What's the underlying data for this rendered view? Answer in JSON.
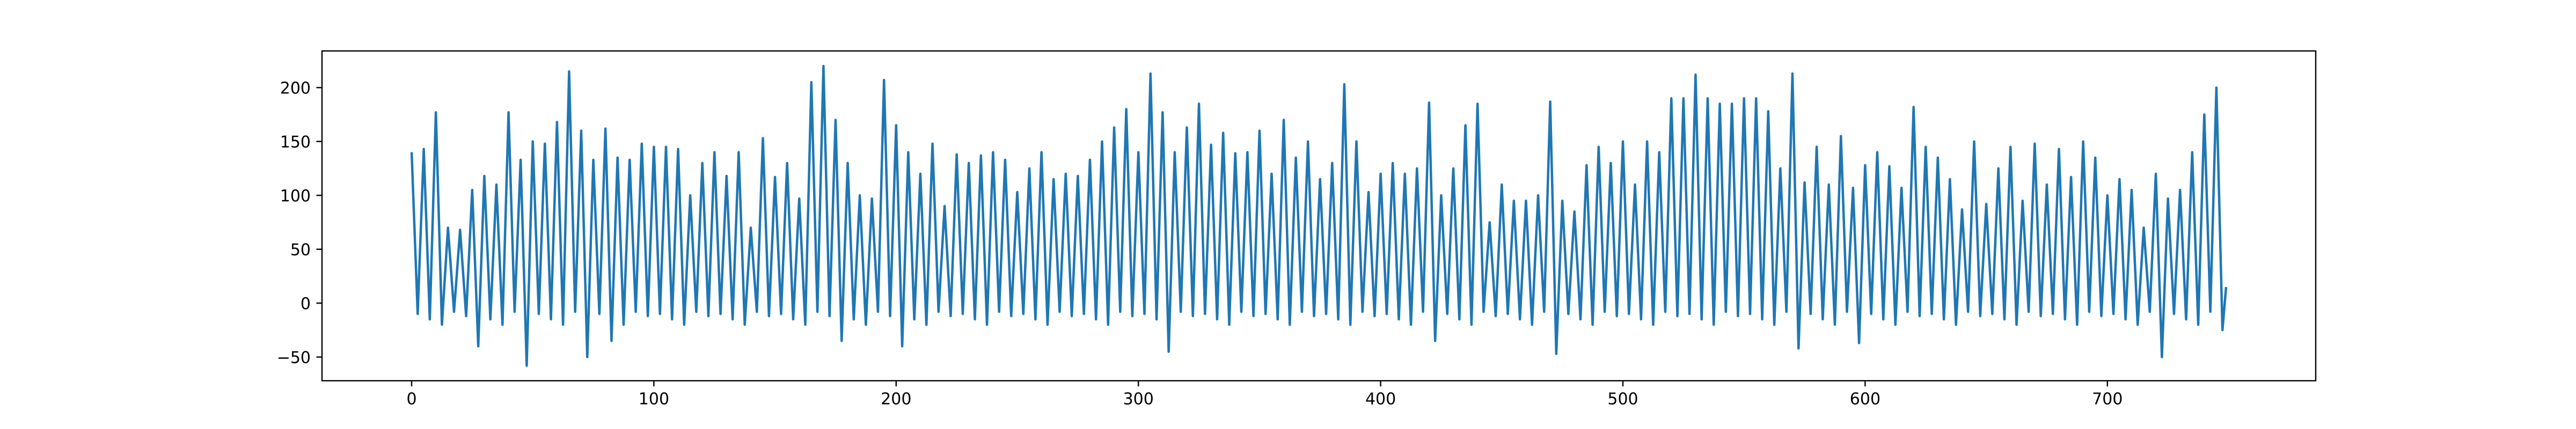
{
  "chart_data": {
    "type": "line",
    "color": "#1f77b4",
    "xlim": [
      -37,
      786
    ],
    "ylim": [
      -72,
      234
    ],
    "xticks": [
      0,
      100,
      200,
      300,
      400,
      500,
      600,
      700
    ],
    "yticks": [
      {
        "value": -50,
        "label": "−50"
      },
      0,
      50,
      100,
      150,
      200
    ],
    "x": [
      0,
      2.5,
      5,
      7.5,
      10,
      12.5,
      15,
      17.5,
      20,
      22.5,
      25,
      27.5,
      30,
      32.5,
      35,
      37.5,
      40,
      42.5,
      45,
      47.5,
      50,
      52.5,
      55,
      57.5,
      60,
      62.5,
      65,
      67.5,
      70,
      72.5,
      75,
      77.5,
      80,
      82.5,
      85,
      87.5,
      90,
      92.5,
      95,
      97.5,
      100,
      102.5,
      105,
      107.5,
      110,
      112.5,
      115,
      117.5,
      120,
      122.5,
      125,
      127.5,
      130,
      132.5,
      135,
      137.5,
      140,
      142.5,
      145,
      147.5,
      150,
      152.5,
      155,
      157.5,
      160,
      162.5,
      165,
      167.5,
      170,
      172.5,
      175,
      177.5,
      180,
      182.5,
      185,
      187.5,
      190,
      192.5,
      195,
      197.5,
      200,
      202.5,
      205,
      207.5,
      210,
      212.5,
      215,
      217.5,
      220,
      222.5,
      225,
      227.5,
      230,
      232.5,
      235,
      237.5,
      240,
      242.5,
      245,
      247.5,
      250,
      252.5,
      255,
      257.5,
      260,
      262.5,
      265,
      267.5,
      270,
      272.5,
      275,
      277.5,
      280,
      282.5,
      285,
      287.5,
      290,
      292.5,
      295,
      297.5,
      300,
      302.5,
      305,
      307.5,
      310,
      312.5,
      315,
      317.5,
      320,
      322.5,
      325,
      327.5,
      330,
      332.5,
      335,
      337.5,
      340,
      342.5,
      345,
      347.5,
      350,
      352.5,
      355,
      357.5,
      360,
      362.5,
      365,
      367.5,
      370,
      372.5,
      375,
      377.5,
      380,
      382.5,
      385,
      387.5,
      390,
      392.5,
      395,
      397.5,
      400,
      402.5,
      405,
      407.5,
      410,
      412.5,
      415,
      417.5,
      420,
      422.5,
      425,
      427.5,
      430,
      432.5,
      435,
      437.5,
      440,
      442.5,
      445,
      447.5,
      450,
      452.5,
      455,
      457.5,
      460,
      462.5,
      465,
      467.5,
      470,
      472.5,
      475,
      477.5,
      480,
      482.5,
      485,
      487.5,
      490,
      492.5,
      495,
      497.5,
      500,
      502.5,
      505,
      507.5,
      510,
      512.5,
      515,
      517.5,
      520,
      522.5,
      525,
      527.5,
      530,
      532.5,
      535,
      537.5,
      540,
      542.5,
      545,
      547.5,
      550,
      552.5,
      555,
      557.5,
      560,
      562.5,
      565,
      567.5,
      570,
      572.5,
      575,
      577.5,
      580,
      582.5,
      585,
      587.5,
      590,
      592.5,
      595,
      597.5,
      600,
      602.5,
      605,
      607.5,
      610,
      612.5,
      615,
      617.5,
      620,
      622.5,
      625,
      627.5,
      630,
      632.5,
      635,
      637.5,
      640,
      642.5,
      645,
      647.5,
      650,
      652.5,
      655,
      657.5,
      660,
      662.5,
      665,
      667.5,
      670,
      672.5,
      675,
      677.5,
      680,
      682.5,
      685,
      687.5,
      690,
      692.5,
      695,
      697.5,
      700,
      702.5,
      705,
      707.5,
      710,
      712.5,
      715,
      717.5,
      720,
      722.5,
      725,
      727.5,
      730,
      732.5,
      735,
      737.5,
      740,
      742.5,
      745,
      747.5,
      749
    ],
    "values": [
      140,
      -10,
      143,
      -15,
      177,
      -20,
      70,
      -8,
      68,
      -12,
      105,
      -40,
      118,
      -15,
      110,
      -20,
      177,
      -8,
      133,
      -58,
      150,
      -10,
      148,
      -15,
      168,
      -20,
      215,
      -8,
      160,
      -50,
      133,
      -10,
      162,
      -35,
      135,
      -20,
      133,
      -8,
      148,
      -12,
      145,
      -10,
      145,
      -15,
      143,
      -20,
      100,
      -8,
      130,
      -12,
      140,
      -10,
      118,
      -15,
      140,
      -20,
      70,
      -8,
      153,
      -12,
      117,
      -10,
      130,
      -15,
      97,
      -20,
      205,
      -8,
      220,
      -12,
      170,
      -35,
      130,
      -15,
      100,
      -20,
      97,
      -8,
      207,
      -12,
      165,
      -40,
      140,
      -15,
      120,
      -20,
      148,
      -8,
      90,
      -12,
      138,
      -10,
      130,
      -15,
      137,
      -20,
      140,
      -8,
      133,
      -12,
      103,
      -10,
      125,
      -15,
      140,
      -20,
      115,
      -8,
      120,
      -12,
      118,
      -10,
      133,
      -15,
      150,
      -20,
      163,
      -8,
      180,
      -12,
      140,
      -10,
      213,
      -15,
      177,
      -45,
      140,
      -8,
      163,
      -12,
      185,
      -10,
      147,
      -15,
      158,
      -20,
      139,
      -8,
      140,
      -12,
      160,
      -10,
      120,
      -15,
      170,
      -20,
      135,
      -8,
      150,
      -12,
      115,
      -10,
      130,
      -15,
      203,
      -20,
      150,
      -8,
      103,
      -12,
      120,
      -10,
      130,
      -15,
      120,
      -20,
      125,
      -8,
      186,
      -35,
      100,
      -10,
      125,
      -15,
      165,
      -20,
      185,
      -8,
      75,
      -12,
      110,
      -10,
      95,
      -15,
      95,
      -20,
      100,
      -8,
      187,
      -47,
      95,
      -10,
      85,
      -15,
      128,
      -20,
      145,
      -8,
      130,
      -12,
      150,
      -10,
      110,
      -15,
      150,
      -20,
      140,
      -8,
      190,
      -12,
      190,
      -10,
      212,
      -15,
      190,
      -20,
      185,
      -8,
      185,
      -12,
      190,
      -10,
      190,
      -15,
      178,
      -20,
      125,
      -8,
      213,
      -42,
      112,
      -10,
      145,
      -15,
      110,
      -20,
      155,
      -8,
      107,
      -37,
      128,
      -10,
      140,
      -15,
      127,
      -20,
      107,
      -8,
      182,
      -12,
      145,
      -10,
      135,
      -15,
      115,
      -20,
      87,
      -8,
      150,
      -12,
      92,
      -10,
      125,
      -15,
      145,
      -20,
      95,
      -8,
      148,
      -12,
      110,
      -10,
      143,
      -15,
      117,
      -20,
      150,
      -8,
      135,
      -12,
      100,
      -10,
      115,
      -15,
      105,
      -20,
      70,
      -8,
      120,
      -50,
      97,
      -10,
      105,
      -15,
      140,
      -20,
      175,
      -8,
      200,
      -25,
      15
    ]
  }
}
